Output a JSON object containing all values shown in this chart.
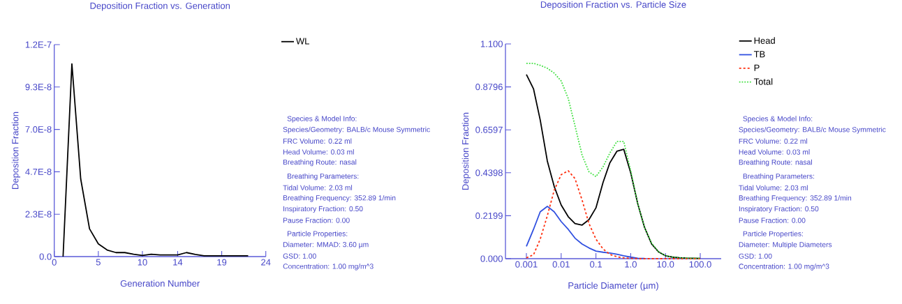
{
  "chart_data": [
    {
      "type": "line",
      "title": "Deposition Fraction vs. Generation",
      "xlabel": "Generation Number",
      "ylabel": "Deposition Fraction",
      "x": [
        1,
        2,
        3,
        4,
        5,
        6,
        7,
        8,
        9,
        10,
        11,
        12,
        13,
        14,
        15,
        16,
        17,
        18,
        19,
        20,
        21,
        22
      ],
      "series": [
        {
          "name": "WL",
          "color": "#000000",
          "values": [
            0,
            1.061e-07,
            4.28e-08,
            1.53e-08,
            7e-09,
            3.6e-09,
            2.2e-09,
            2.2e-09,
            1.3e-09,
            6e-10,
            1.3e-09,
            9e-10,
            9e-10,
            9e-10,
            2.2e-09,
            1.2e-09,
            4e-10,
            4e-10,
            4e-10,
            4e-10,
            4e-10,
            4e-10
          ]
        }
      ],
      "xlim": [
        0,
        24
      ],
      "xticks": [
        0,
        5,
        10,
        14,
        19,
        24
      ],
      "ylim": [
        0,
        1.1667e-07
      ],
      "yticks": [
        {
          "value": 0,
          "label": "0.0"
        },
        {
          "value": 2.333e-08,
          "label": "2.3E-8"
        },
        {
          "value": 4.667e-08,
          "label": "4.7E-8"
        },
        {
          "value": 7e-08,
          "label": "7.0E-8"
        },
        {
          "value": 9.333e-08,
          "label": "9.3E-8"
        },
        {
          "value": 1.1667e-07,
          "label": "1.2E-7"
        }
      ],
      "grid": false,
      "legend": "top right",
      "marker": "none",
      "line_style": "solid",
      "annotations": [
        "Species & Model Info:",
        "Species/Geometry: BALB/c Mouse Symmetric",
        "FRC Volume: 0.22 ml",
        "Head Volume: 0.03 ml",
        "Breathing Route: nasal",
        "Breathing Parameters:",
        "Tidal Volume: 2.03 ml",
        "Breathing Frequency: 352.89 1/min",
        "Inspiratory Fraction: 0.50",
        "Pause Fraction: 0.00",
        "Particle Properties:",
        "Diameter: MMAD: 3.60 µm",
        "GSD: 1.00",
        "Concentration: 1.00 mg/m^3"
      ]
    },
    {
      "type": "line",
      "title": "Deposition Fraction vs. Particle Size",
      "xlabel": "Particle Diameter (µm)",
      "ylabel": "Deposition Fraction",
      "x": [
        0.001,
        0.0016,
        0.0025,
        0.004,
        0.0063,
        0.01,
        0.016,
        0.025,
        0.04,
        0.063,
        0.1,
        0.16,
        0.25,
        0.4,
        0.63,
        1,
        1.6,
        2.5,
        4,
        6.3,
        10,
        16,
        25,
        40,
        63,
        100
      ],
      "series": [
        {
          "name": "Head",
          "color": "#000000",
          "line_style": "solid",
          "values": [
            0.943,
            0.87,
            0.71,
            0.5,
            0.37,
            0.275,
            0.215,
            0.18,
            0.172,
            0.2,
            0.26,
            0.39,
            0.49,
            0.55,
            0.56,
            0.44,
            0.28,
            0.16,
            0.075,
            0.035,
            0.015,
            0.008,
            0.005,
            0.003,
            0.002,
            0.001
          ]
        },
        {
          "name": "TB",
          "color": "#3050e0",
          "line_style": "solid",
          "values": [
            0.063,
            0.15,
            0.24,
            0.268,
            0.24,
            0.19,
            0.15,
            0.105,
            0.075,
            0.055,
            0.039,
            0.033,
            0.029,
            0.023,
            0.015,
            0.008,
            0.002,
            0.001,
            null,
            null,
            null,
            null,
            null,
            null,
            null,
            null
          ]
        },
        {
          "name": "P",
          "color": "#ff3010",
          "line_style": "dashed",
          "values": [
            0.004,
            0.02,
            0.1,
            0.22,
            0.35,
            0.43,
            0.45,
            0.41,
            0.3,
            0.18,
            0.1,
            0.05,
            0.022,
            0.01,
            0.004,
            0.002,
            0,
            0,
            0,
            0,
            0,
            0,
            0,
            0,
            0,
            0
          ]
        },
        {
          "name": "Total",
          "color": "#40e040",
          "line_style": "dotted",
          "values": [
            1.0,
            1.0,
            0.99,
            0.975,
            0.95,
            0.91,
            0.82,
            0.68,
            0.53,
            0.445,
            0.42,
            0.47,
            0.54,
            0.6,
            0.6,
            0.45,
            0.28,
            0.16,
            0.08,
            0.035,
            0.015,
            0.008,
            0.005,
            0.003,
            0.002,
            0.002
          ]
        }
      ],
      "log": "x",
      "xlim": [
        0.00025,
        400
      ],
      "xticks": [
        {
          "value": 0.001,
          "label": "0.001"
        },
        {
          "value": 0.01,
          "label": "0.01"
        },
        {
          "value": 0.1,
          "label": "0.1"
        },
        {
          "value": 1,
          "label": "1.0"
        },
        {
          "value": 10,
          "label": "10.0"
        },
        {
          "value": 100,
          "label": "100.0"
        }
      ],
      "ylim": [
        0,
        1.0995
      ],
      "yticks": [
        {
          "value": 0,
          "label": "0.000"
        },
        0.2199,
        0.4398,
        0.6597,
        0.8796,
        {
          "value": 1.0995,
          "label": "1.100"
        }
      ],
      "grid": false,
      "legend": "top right",
      "marker": "none",
      "annotations": [
        "Species & Model Info:",
        "Species/Geometry: BALB/c Mouse Symmetric",
        "FRC Volume: 0.22 ml",
        "Head Volume: 0.03 ml",
        "Breathing Route: nasal",
        "Breathing Parameters:",
        "Tidal Volume: 2.03 ml",
        "Breathing Frequency: 352.89 1/min",
        "Inspiratory Fraction: 0.50",
        "Pause Fraction: 0.00",
        "Particle Properties:",
        "Diameter: Multiple Diameters",
        "GSD: 1.00",
        "Concentration: 1.00 mg/m^3"
      ]
    }
  ]
}
